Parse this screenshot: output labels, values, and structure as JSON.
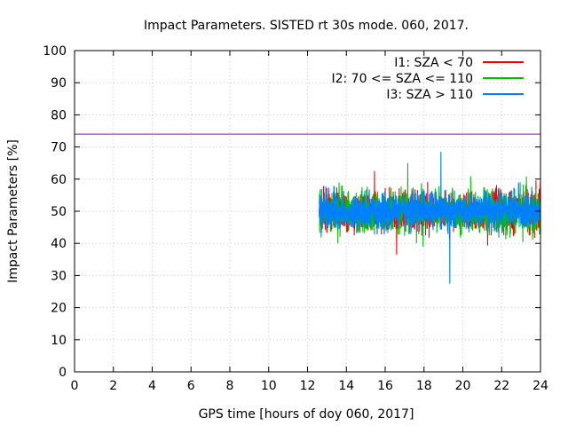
{
  "chart_data": {
    "type": "line",
    "title": "Impact Parameters. SISTED rt 30s mode. 060, 2017.",
    "xlabel": "GPS time [hours of doy 060, 2017]",
    "ylabel": "Impact Parameters [%]",
    "xlim": [
      0,
      24
    ],
    "ylim": [
      0,
      100
    ],
    "xticks": [
      0,
      2,
      4,
      6,
      8,
      10,
      12,
      14,
      16,
      18,
      20,
      22,
      24
    ],
    "yticks": [
      0,
      10,
      20,
      30,
      40,
      50,
      60,
      70,
      80,
      90,
      100
    ],
    "grid": true,
    "legend_position": "top-right",
    "series": [
      {
        "name": "I1: SZA < 70",
        "color": "#ff0000",
        "t_start": 12.6,
        "t_end": 24,
        "mean": 50,
        "typical_range": [
          42,
          58
        ],
        "min": 36.5,
        "max": 62.5
      },
      {
        "name": "I2: 70 <= SZA <= 110",
        "color": "#00c000",
        "t_start": 12.6,
        "t_end": 24,
        "mean": 50,
        "typical_range": [
          42,
          58
        ],
        "min": 39,
        "max": 65
      },
      {
        "name": "I3: SZA > 110",
        "color": "#0080ff",
        "t_start": 12.6,
        "t_end": 24,
        "mean": 50,
        "typical_range": [
          43,
          57
        ],
        "min": 27.5,
        "max": 68.5
      }
    ],
    "reference_line": {
      "value": 74,
      "color": "#9400d3"
    }
  }
}
